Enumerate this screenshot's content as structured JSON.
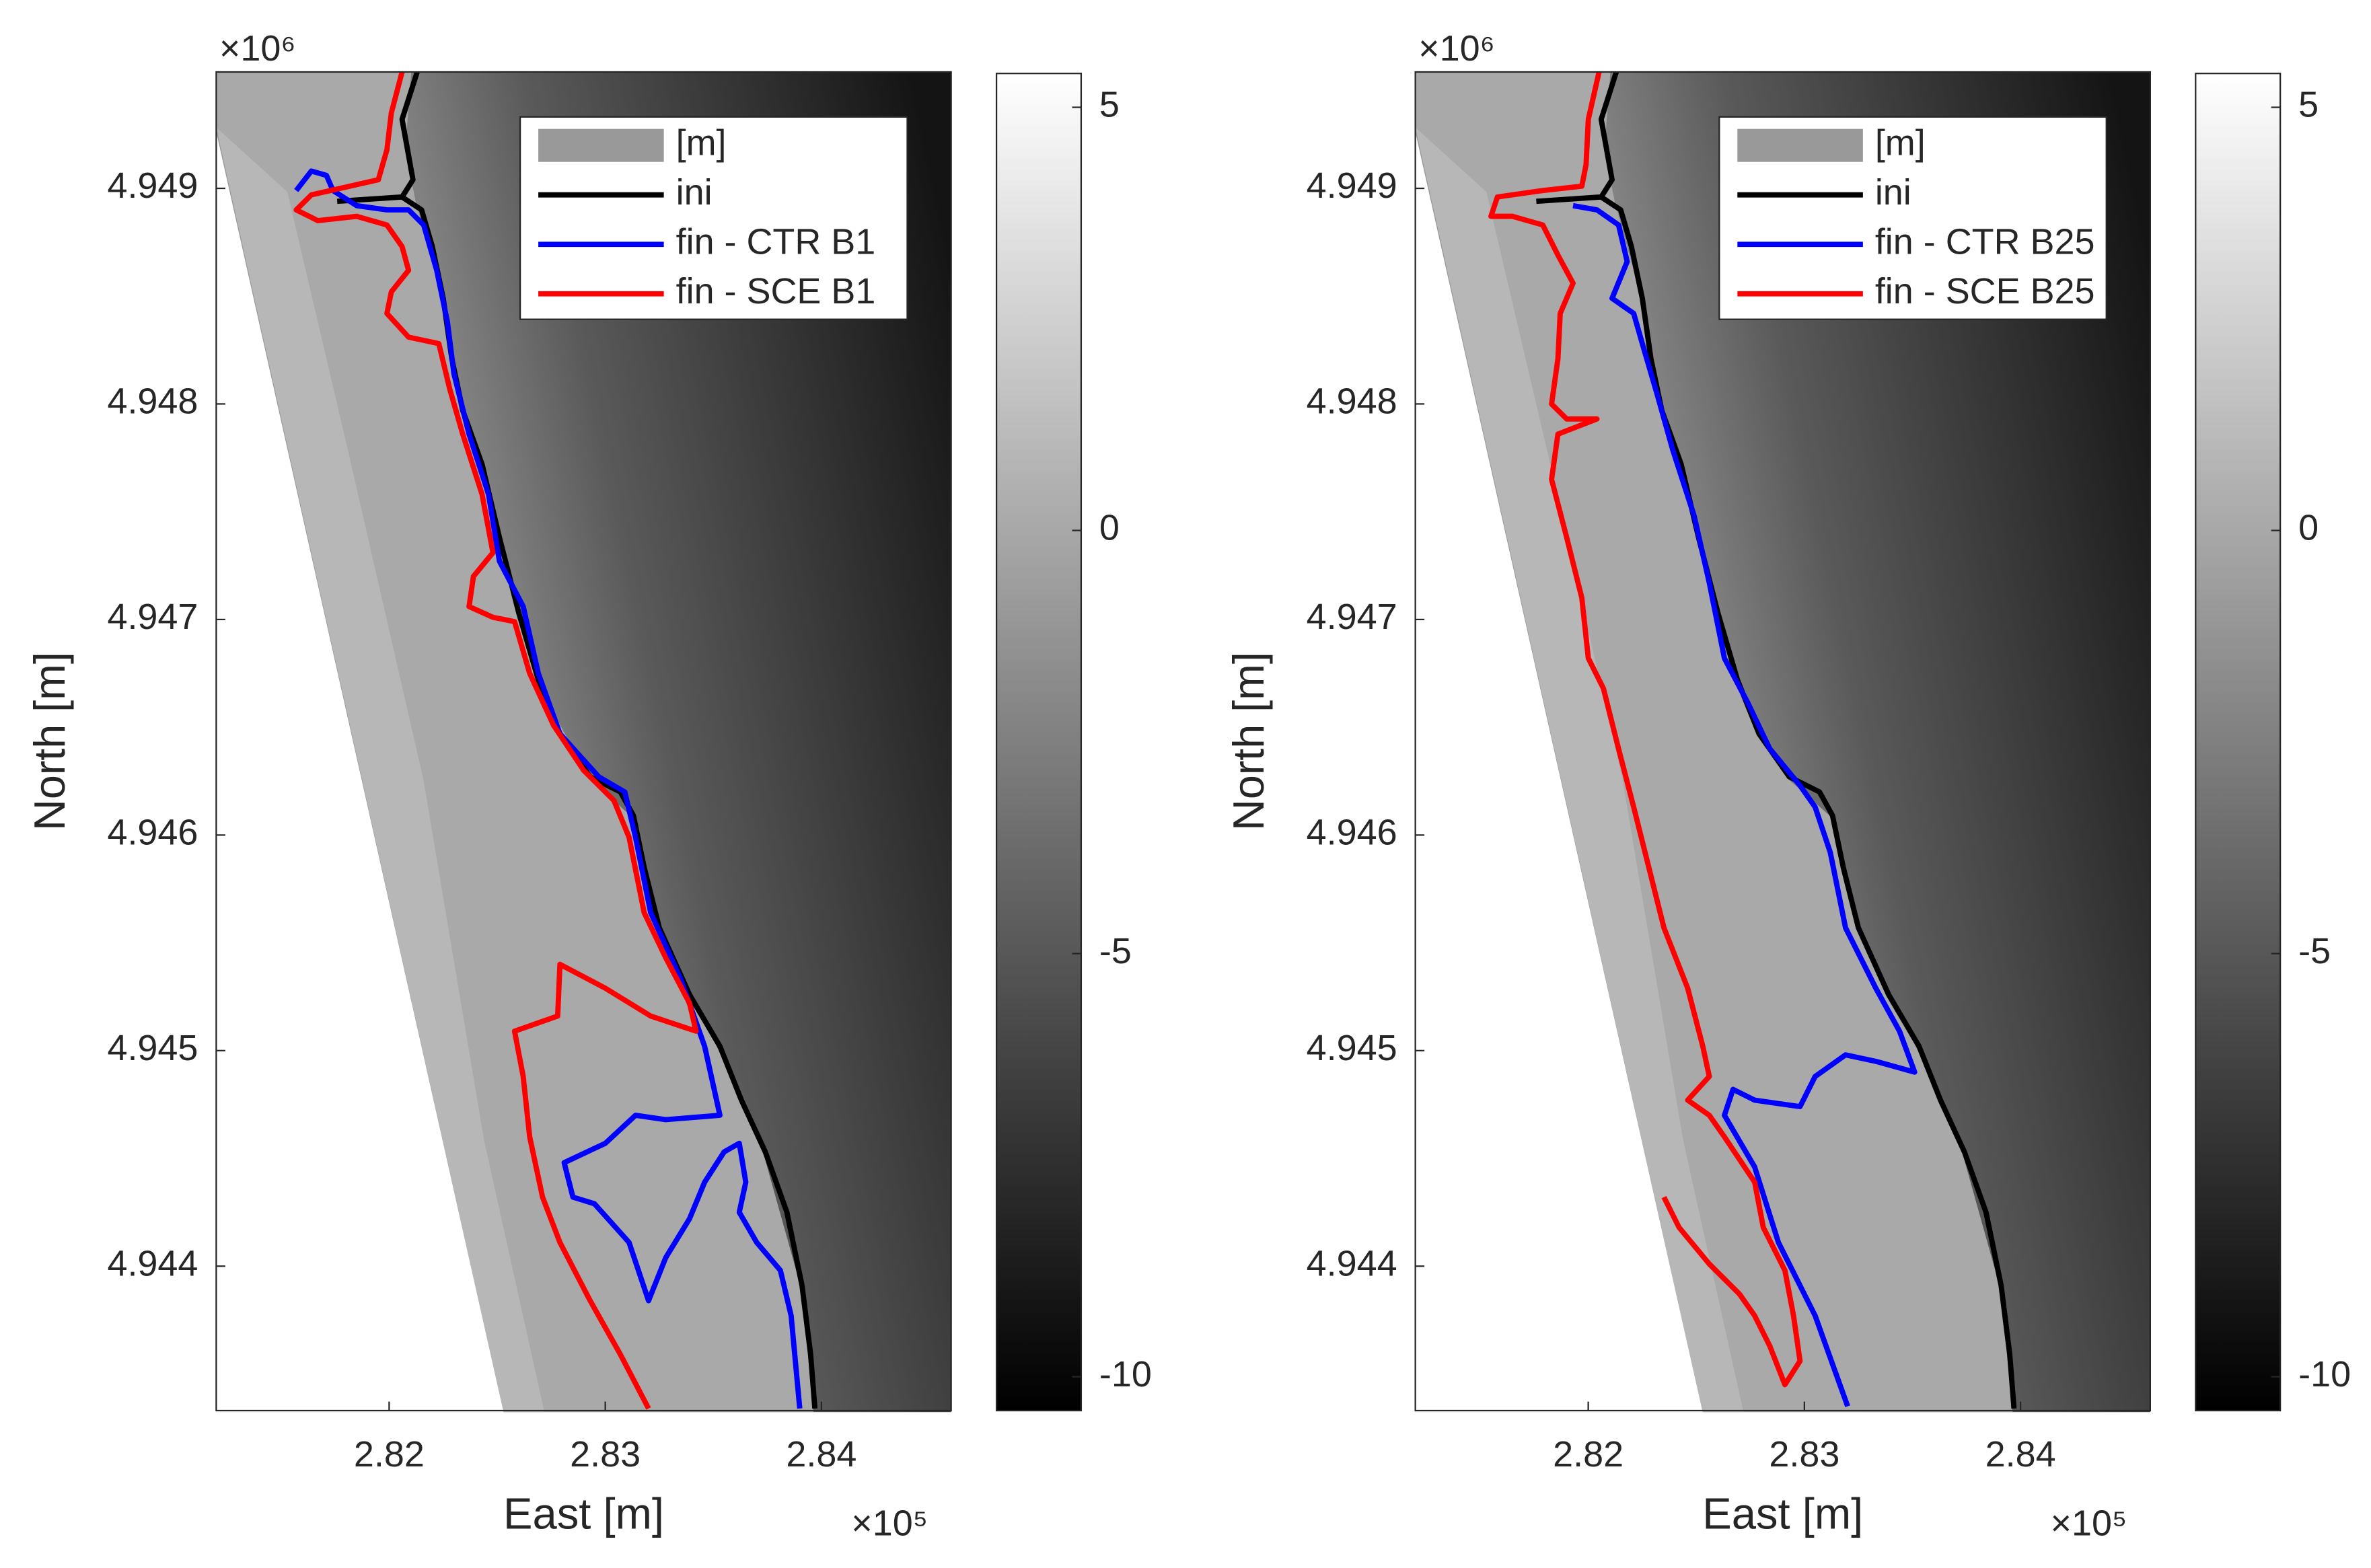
{
  "chart_data": [
    {
      "type": "line",
      "xlabel": "East [m]",
      "ylabel": "North [m]",
      "x_exponent_label": "×10⁵",
      "y_exponent_label": "×10⁶",
      "xlim": [
        281200,
        284600
      ],
      "xticks": [
        {
          "value": 282000,
          "label": "2.82"
        },
        {
          "value": 283000,
          "label": "2.83"
        },
        {
          "value": 284000,
          "label": "2.84"
        }
      ],
      "ylim": [
        4943330,
        4949540
      ],
      "yticks": [
        {
          "value": 4944000,
          "label": "4.944"
        },
        {
          "value": 4945000,
          "label": "4.945"
        },
        {
          "value": 4946000,
          "label": "4.946"
        },
        {
          "value": 4947000,
          "label": "4.947"
        },
        {
          "value": 4948000,
          "label": "4.948"
        },
        {
          "value": 4949000,
          "label": "4.949"
        }
      ],
      "clim": [
        -10.4,
        5.4
      ],
      "cticks": [
        -10,
        -5,
        0,
        5
      ],
      "image_label": "[m]",
      "legend": "northeast",
      "series": [
        {
          "name": "ini",
          "color": "#000000",
          "x": [
            282130,
            282060,
            282110,
            282060,
            null,
            281760,
            282060,
            282150,
            282200,
            282250,
            282290,
            282340,
            282430,
            282510,
            282600,
            282690,
            282790,
            282930,
            283070,
            283130,
            283180,
            283250,
            283390,
            283530,
            283630,
            283740,
            283840,
            283910,
            283950,
            283970
          ],
          "y": [
            4949540,
            4949320,
            4949040,
            4948960,
            null,
            4948940,
            4948960,
            4948900,
            4948730,
            4948490,
            4948210,
            4947970,
            4947720,
            4947380,
            4947030,
            4946720,
            4946470,
            4946270,
            4946200,
            4946090,
            4945850,
            4945570,
            4945260,
            4945020,
            4944770,
            4944530,
            4944250,
            4943910,
            4943590,
            4943340
          ]
        },
        {
          "name": "fin - CTR B1",
          "color": "#0000ff",
          "x": [
            281570,
            281640,
            281710,
            281740,
            281850,
            281990,
            282090,
            282160,
            282220,
            282270,
            282300,
            282370,
            282460,
            282510,
            282620,
            282690,
            282790,
            282970,
            283090,
            283140,
            283210,
            283350,
            283460,
            283530,
            283280,
            283140,
            283000,
            282810,
            282850,
            282950,
            283110,
            283200,
            283280,
            283390,
            283460,
            283550,
            283620,
            283650,
            283620,
            283700,
            283810,
            283860,
            283900
          ],
          "y": [
            4948990,
            4949080,
            4949060,
            4948990,
            4948920,
            4948900,
            4948900,
            4948830,
            4948620,
            4948380,
            4948140,
            4947860,
            4947580,
            4947270,
            4947060,
            4946750,
            4946470,
            4946270,
            4946200,
            4945990,
            4945640,
            4945330,
            4945020,
            4944700,
            4944680,
            4944700,
            4944570,
            4944480,
            4944320,
            4944290,
            4944110,
            4943840,
            4944040,
            4944220,
            4944390,
            4944530,
            4944570,
            4944390,
            4944250,
            4944110,
            4943980,
            4943770,
            4943340
          ]
        },
        {
          "name": "fin - SCE B1",
          "color": "#ff0000",
          "x": [
            282060,
            282010,
            281990,
            281950,
            281640,
            281570,
            281670,
            281850,
            281990,
            282060,
            282090,
            282010,
            281990,
            282090,
            282230,
            282280,
            282340,
            282430,
            282480,
            282390,
            282370,
            282480,
            282580,
            282650,
            282760,
            282900,
            283040,
            283110,
            283180,
            283280,
            283390,
            283420,
            283210,
            283000,
            282790,
            282780,
            282580,
            282620,
            282650,
            282710,
            282790,
            282930,
            283070,
            283200
          ],
          "y": [
            4949540,
            4949350,
            4949180,
            4949040,
            4948970,
            4948900,
            4948850,
            4948870,
            4948830,
            4948730,
            4948620,
            4948520,
            4948420,
            4948310,
            4948280,
            4948070,
            4947860,
            4947580,
            4947310,
            4947200,
            4947060,
            4947010,
            4946990,
            4946750,
            4946510,
            4946300,
            4946160,
            4945990,
            4945640,
            4945430,
            4945220,
            4945090,
            4945160,
            4945290,
            4945400,
            4945160,
            4945090,
            4944880,
            4944600,
            4944320,
            4944110,
            4943840,
            4943590,
            4943340
          ]
        }
      ]
    },
    {
      "type": "line",
      "xlabel": "East [m]",
      "ylabel": "North [m]",
      "x_exponent_label": "×10⁵",
      "y_exponent_label": "×10⁶",
      "xlim": [
        281200,
        284600
      ],
      "xticks": [
        {
          "value": 282000,
          "label": "2.82"
        },
        {
          "value": 283000,
          "label": "2.83"
        },
        {
          "value": 284000,
          "label": "2.84"
        }
      ],
      "ylim": [
        4943330,
        4949540
      ],
      "yticks": [
        {
          "value": 4944000,
          "label": "4.944"
        },
        {
          "value": 4945000,
          "label": "4.945"
        },
        {
          "value": 4946000,
          "label": "4.946"
        },
        {
          "value": 4947000,
          "label": "4.947"
        },
        {
          "value": 4948000,
          "label": "4.948"
        },
        {
          "value": 4949000,
          "label": "4.949"
        }
      ],
      "clim": [
        -10.4,
        5.4
      ],
      "cticks": [
        -10,
        -5,
        0,
        5
      ],
      "image_label": "[m]",
      "legend": "northeast",
      "series": [
        {
          "name": "ini",
          "color": "#000000",
          "x": [
            282130,
            282060,
            282110,
            282060,
            null,
            281760,
            282060,
            282150,
            282200,
            282250,
            282290,
            282340,
            282430,
            282510,
            282600,
            282690,
            282790,
            282930,
            283070,
            283130,
            283180,
            283250,
            283390,
            283530,
            283630,
            283740,
            283840,
            283910,
            283950,
            283970
          ],
          "y": [
            4949540,
            4949320,
            4949040,
            4948960,
            null,
            4948940,
            4948960,
            4948900,
            4948730,
            4948490,
            4948210,
            4947970,
            4947720,
            4947380,
            4947030,
            4946720,
            4946470,
            4946270,
            4946200,
            4946090,
            4945850,
            4945570,
            4945260,
            4945020,
            4944770,
            4944530,
            4944250,
            4943910,
            4943590,
            4943340
          ]
        },
        {
          "name": "fin - CTR B25",
          "color": "#0000ff",
          "x": [
            281930,
            282040,
            282140,
            282180,
            282110,
            282210,
            282250,
            282320,
            282390,
            282490,
            282560,
            282630,
            282740,
            282840,
            282980,
            283050,
            283120,
            283190,
            283330,
            283440,
            283510,
            283330,
            283190,
            283050,
            282980,
            282770,
            282670,
            282630,
            282770,
            282880,
            283050,
            283200
          ],
          "y": [
            4948920,
            4948900,
            4948830,
            4948660,
            4948490,
            4948420,
            4948280,
            4948040,
            4947790,
            4947480,
            4947170,
            4946820,
            4946610,
            4946400,
            4946230,
            4946130,
            4945920,
            4945570,
            4945290,
            4945090,
            4944900,
            4944950,
            4944980,
            4944880,
            4944740,
            4944770,
            4944820,
            4944700,
            4944460,
            4944110,
            4943770,
            4943350
          ]
        },
        {
          "name": "fin - SCE B25",
          "color": "#ff0000",
          "x": [
            282050,
            282000,
            281990,
            281970,
            281790,
            281580,
            281550,
            281650,
            281790,
            281860,
            281930,
            281870,
            281860,
            281830,
            281900,
            282040,
            281860,
            281830,
            281900,
            281970,
            282000,
            282070,
            282140,
            282210,
            282280,
            282350,
            282460,
            282530,
            282560,
            282460,
            282560,
            282630,
            282770,
            282810,
            282910,
            282950,
            282980,
            282910,
            282840,
            282770,
            282700,
            282560,
            282420,
            282350
          ],
          "y": [
            4949540,
            4949320,
            4949110,
            4949010,
            4948990,
            4948960,
            4948870,
            4948870,
            4948830,
            4948690,
            4948560,
            4948420,
            4948210,
            4948000,
            4947930,
            4947930,
            4947860,
            4947650,
            4947380,
            4947100,
            4946820,
            4946680,
            4946400,
            4946130,
            4945850,
            4945570,
            4945290,
            4945020,
            4944880,
            4944770,
            4944700,
            4944600,
            4944390,
            4944180,
            4943980,
            4943770,
            4943560,
            4943450,
            4943630,
            4943770,
            4943870,
            4944010,
            4944180,
            4944320
          ]
        }
      ]
    }
  ]
}
